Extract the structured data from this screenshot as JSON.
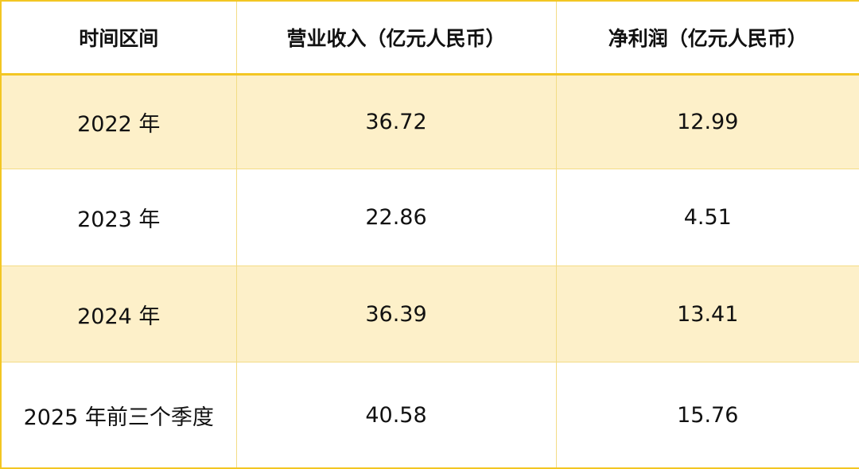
{
  "table": {
    "headers": [
      "时间区间",
      "营业收入（亿元人民币）",
      "净利润（亿元人民币）"
    ],
    "rows": [
      [
        "2022 年",
        "36.72",
        "12.99"
      ],
      [
        "2023 年",
        "22.86",
        "4.51"
      ],
      [
        "2024 年",
        "36.39",
        "13.41"
      ],
      [
        "2025 年前三个季度",
        "40.58",
        "15.76"
      ]
    ]
  },
  "colors": {
    "border": "#f3c623",
    "highlight_row": "#fdf0c9"
  }
}
